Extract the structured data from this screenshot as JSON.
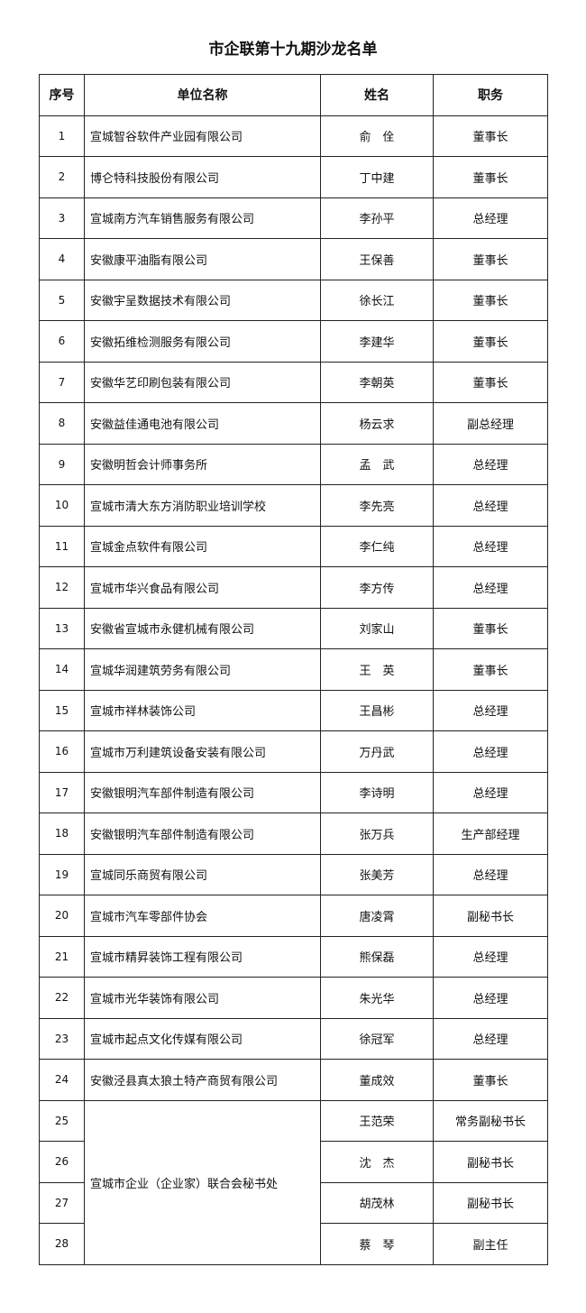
{
  "title": "市企联第十九期沙龙名单",
  "headers": [
    "序号",
    "单位名称",
    "姓名",
    "职务"
  ],
  "rows": [
    {
      "no": "1",
      "company": "宣城智谷软件产业园有限公司",
      "name": "俞　佺",
      "position": "董事长"
    },
    {
      "no": "2",
      "company": "博仑特科技股份有限公司",
      "name": "丁中建",
      "position": "董事长"
    },
    {
      "no": "3",
      "company": "宣城南方汽车销售服务有限公司",
      "name": "李孙平",
      "position": "总经理"
    },
    {
      "no": "4",
      "company": "安徽康平油脂有限公司",
      "name": "王保善",
      "position": "董事长"
    },
    {
      "no": "5",
      "company": "安徽宇呈数据技术有限公司",
      "name": "徐长江",
      "position": "董事长"
    },
    {
      "no": "6",
      "company": "安徽拓维检测服务有限公司",
      "name": "李建华",
      "position": "董事长"
    },
    {
      "no": "7",
      "company": "安徽华艺印刷包装有限公司",
      "name": "李朝英",
      "position": "董事长"
    },
    {
      "no": "8",
      "company": "安徽益佳通电池有限公司",
      "name": "杨云求",
      "position": "副总经理"
    },
    {
      "no": "9",
      "company": "安徽明哲会计师事务所",
      "name": "孟　武",
      "position": "总经理"
    },
    {
      "no": "10",
      "company": "宣城市清大东方消防职业培训学校",
      "name": "李先亮",
      "position": "总经理"
    },
    {
      "no": "11",
      "company": "宣城金点软件有限公司",
      "name": "李仁纯",
      "position": "总经理"
    },
    {
      "no": "12",
      "company": "宣城市华兴食品有限公司",
      "name": "李方传",
      "position": "总经理"
    },
    {
      "no": "13",
      "company": "安徽省宣城市永健机械有限公司",
      "name": "刘家山",
      "position": "董事长"
    },
    {
      "no": "14",
      "company": "宣城华润建筑劳务有限公司",
      "name": "王　英",
      "position": "董事长"
    },
    {
      "no": "15",
      "company": "宣城市祥林装饰公司",
      "name": "王昌彬",
      "position": "总经理"
    },
    {
      "no": "16",
      "company": "宣城市万利建筑设备安装有限公司",
      "name": "万丹武",
      "position": "总经理"
    },
    {
      "no": "17",
      "company": "安徽银明汽车部件制造有限公司",
      "name": "李诗明",
      "position": "总经理"
    },
    {
      "no": "18",
      "company": "安徽银明汽车部件制造有限公司",
      "name": "张万兵",
      "position": "生产部经理"
    },
    {
      "no": "19",
      "company": "宣城同乐商贸有限公司",
      "name": "张美芳",
      "position": "总经理"
    },
    {
      "no": "20",
      "company": "宣城市汽车零部件协会",
      "name": "唐凌霄",
      "position": "副秘书长"
    },
    {
      "no": "21",
      "company": "宣城市精昇装饰工程有限公司",
      "name": "熊保磊",
      "position": "总经理"
    },
    {
      "no": "22",
      "company": "宣城市光华装饰有限公司",
      "name": "朱光华",
      "position": "总经理"
    },
    {
      "no": "23",
      "company": "宣城市起点文化传媒有限公司",
      "name": "徐冠军",
      "position": "总经理"
    },
    {
      "no": "24",
      "company": "安徽泾县真太狼土特产商贸有限公司",
      "name": "董成效",
      "position": "董事长"
    },
    {
      "no": "25",
      "company": "宣城市企业（企业家）联合会秘书处",
      "company_rowspan": 4,
      "name": "王范荣",
      "position": "常务副秘书长"
    },
    {
      "no": "26",
      "name": "沈　杰",
      "position": "副秘书长"
    },
    {
      "no": "27",
      "name": "胡茂林",
      "position": "副秘书长"
    },
    {
      "no": "28",
      "name": "蔡　琴",
      "position": "副主任"
    }
  ]
}
